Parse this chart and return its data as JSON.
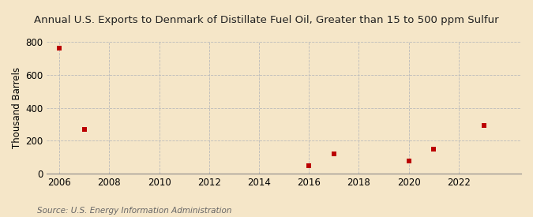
{
  "title": "Annual U.S. Exports to Denmark of Distillate Fuel Oil, Greater than 15 to 500 ppm Sulfur",
  "ylabel": "Thousand Barrels",
  "source": "Source: U.S. Energy Information Administration",
  "years": [
    2006,
    2007,
    2016,
    2017,
    2020,
    2021,
    2023
  ],
  "values": [
    762,
    270,
    50,
    120,
    75,
    148,
    295
  ],
  "xlim": [
    2005.5,
    2024.5
  ],
  "ylim": [
    0,
    800
  ],
  "yticks": [
    0,
    200,
    400,
    600,
    800
  ],
  "xticks": [
    2006,
    2008,
    2010,
    2012,
    2014,
    2016,
    2018,
    2020,
    2022
  ],
  "marker_color": "#bb0000",
  "marker_size": 5,
  "bg_color": "#f5e6c8",
  "grid_color": "#bbbbbb",
  "title_fontsize": 9.5,
  "axis_fontsize": 8.5,
  "source_fontsize": 7.5
}
